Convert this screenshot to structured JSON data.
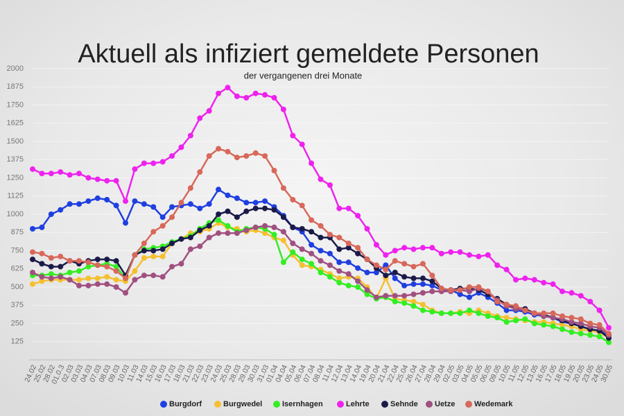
{
  "chart_data": {
    "type": "line",
    "title": "Aktuell als infiziert gemeldete Personen",
    "subtitle": "der vergangenen drei Monate",
    "categories": [
      "24.02",
      "25.02",
      "28.02",
      "01.0.3",
      "02.03",
      "03.03",
      "04.03",
      "07.03",
      "08.03",
      "09.03",
      "10.03",
      "11.03",
      "14.03",
      "15.03",
      "16.03",
      "17.03",
      "18.03",
      "21.03",
      "22.03",
      "23.03",
      "24.03",
      "25.03",
      "28.03",
      "29.03",
      "30.03",
      "31.03",
      "01.04",
      "04.04",
      "05.04",
      "06.04",
      "07.04",
      "08.04",
      "11.04",
      "12.04",
      "13.04",
      "14.04",
      "19.04",
      "20.04",
      "21.04",
      "22.04",
      "25.04",
      "26.04",
      "27.04",
      "28.04",
      "29.04",
      "02.05",
      "03.05",
      "04.05",
      "05.05",
      "06.05",
      "09.05",
      "10.05",
      "11.05",
      "12.05",
      "13.05",
      "16.05",
      "17.05",
      "18.05",
      "19.05",
      "20.05",
      "23.05",
      "24.05",
      "30.05"
    ],
    "series": [
      {
        "name": "Burgdorf",
        "color": "#1f3fe0",
        "values": [
          900,
          910,
          1000,
          1030,
          1070,
          1070,
          1090,
          1110,
          1100,
          1060,
          940,
          1090,
          1070,
          1050,
          980,
          1050,
          1060,
          1070,
          1040,
          1070,
          1170,
          1130,
          1110,
          1080,
          1080,
          1090,
          1050,
          990,
          910,
          880,
          790,
          750,
          730,
          670,
          670,
          630,
          600,
          600,
          650,
          560,
          510,
          520,
          520,
          510,
          480,
          480,
          450,
          430,
          460,
          430,
          390,
          340,
          340,
          330,
          310,
          300,
          290,
          260,
          250,
          230,
          210,
          200,
          170
        ]
      },
      {
        "name": "Burgwedel",
        "color": "#f5c030",
        "values": [
          520,
          540,
          550,
          550,
          550,
          550,
          560,
          560,
          570,
          550,
          540,
          610,
          700,
          710,
          710,
          800,
          830,
          870,
          880,
          900,
          940,
          910,
          900,
          880,
          890,
          870,
          840,
          820,
          720,
          650,
          640,
          620,
          590,
          560,
          570,
          560,
          500,
          420,
          560,
          420,
          410,
          400,
          380,
          340,
          320,
          320,
          330,
          320,
          340,
          320,
          300,
          290,
          280,
          270,
          260,
          260,
          250,
          240,
          230,
          210,
          200,
          190,
          150
        ]
      },
      {
        "name": "Isernhagen",
        "color": "#33ee22",
        "values": [
          580,
          580,
          590,
          580,
          600,
          610,
          640,
          650,
          660,
          640,
          560,
          720,
          760,
          770,
          780,
          810,
          830,
          850,
          900,
          940,
          960,
          920,
          880,
          900,
          910,
          900,
          860,
          670,
          740,
          690,
          660,
          600,
          570,
          530,
          510,
          500,
          450,
          420,
          430,
          400,
          390,
          370,
          340,
          330,
          320,
          320,
          320,
          340,
          320,
          300,
          290,
          260,
          270,
          280,
          250,
          240,
          230,
          210,
          190,
          180,
          170,
          160,
          120
        ]
      },
      {
        "name": "Lehrte",
        "color": "#ee22ee",
        "values": [
          1310,
          1280,
          1280,
          1290,
          1270,
          1280,
          1250,
          1240,
          1230,
          1230,
          1090,
          1310,
          1350,
          1350,
          1360,
          1400,
          1460,
          1540,
          1660,
          1710,
          1830,
          1870,
          1810,
          1800,
          1830,
          1820,
          1800,
          1720,
          1540,
          1480,
          1350,
          1240,
          1200,
          1040,
          1040,
          990,
          900,
          790,
          720,
          750,
          770,
          760,
          770,
          770,
          730,
          740,
          740,
          720,
          710,
          720,
          650,
          620,
          550,
          560,
          550,
          530,
          520,
          470,
          460,
          440,
          400,
          340,
          220
        ]
      },
      {
        "name": "Sehnde",
        "color": "#1a1a4a",
        "values": [
          690,
          660,
          640,
          640,
          680,
          660,
          680,
          690,
          690,
          680,
          580,
          720,
          750,
          750,
          760,
          800,
          830,
          840,
          890,
          920,
          1000,
          1020,
          980,
          1020,
          1040,
          1040,
          1030,
          980,
          910,
          900,
          880,
          840,
          840,
          760,
          770,
          730,
          690,
          630,
          580,
          600,
          570,
          560,
          560,
          540,
          490,
          480,
          490,
          490,
          480,
          450,
          420,
          380,
          360,
          350,
          320,
          310,
          290,
          270,
          250,
          230,
          210,
          200,
          150
        ]
      },
      {
        "name": "Uetze",
        "color": "#a05080",
        "values": [
          600,
          570,
          560,
          570,
          550,
          510,
          510,
          520,
          520,
          500,
          460,
          550,
          580,
          580,
          570,
          640,
          660,
          760,
          780,
          840,
          870,
          870,
          870,
          890,
          910,
          920,
          910,
          880,
          800,
          760,
          730,
          680,
          650,
          610,
          590,
          540,
          480,
          430,
          440,
          440,
          440,
          450,
          460,
          470,
          470,
          470,
          480,
          470,
          490,
          470,
          410,
          370,
          350,
          340,
          320,
          300,
          290,
          280,
          260,
          250,
          230,
          220,
          170
        ]
      },
      {
        "name": "Wedemark",
        "color": "#d8685a",
        "values": [
          740,
          730,
          700,
          710,
          680,
          680,
          670,
          650,
          640,
          610,
          560,
          720,
          800,
          880,
          920,
          980,
          1080,
          1180,
          1290,
          1400,
          1450,
          1430,
          1390,
          1400,
          1420,
          1400,
          1300,
          1180,
          1100,
          1060,
          960,
          920,
          860,
          840,
          800,
          770,
          690,
          650,
          620,
          680,
          660,
          640,
          660,
          580,
          490,
          480,
          480,
          500,
          500,
          470,
          400,
          380,
          370,
          340,
          320,
          320,
          320,
          300,
          290,
          280,
          250,
          240,
          180
        ]
      }
    ],
    "ylim": [
      0,
      2000
    ],
    "yticks": [
      125,
      250,
      375,
      500,
      625,
      750,
      875,
      1000,
      1125,
      1250,
      1375,
      1500,
      1625,
      1750,
      1875,
      2000
    ],
    "legend": "bottom"
  }
}
